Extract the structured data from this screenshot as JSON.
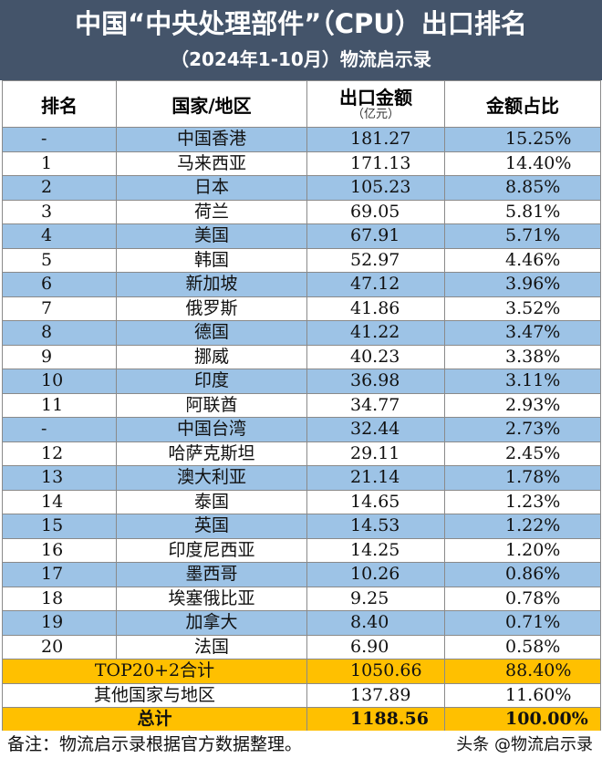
{
  "header": {
    "title": "中国“中央处理部件”（CPU）出口排名",
    "subtitle": "（2024年1-10月）物流启示录"
  },
  "colors": {
    "title_bg": "#44546a",
    "row_blue": "#9dc3e6",
    "summary": "#ffc000"
  },
  "chart_data": {
    "type": "table",
    "columns": [
      "排名",
      "国家/地区",
      "出口金额",
      "金额占比"
    ],
    "amount_unit": "（亿元）",
    "rows": [
      {
        "rank": "-",
        "region": "中国香港",
        "amount": "181.27",
        "share": "15.25%"
      },
      {
        "rank": "1",
        "region": "马来西亚",
        "amount": "171.13",
        "share": "14.40%"
      },
      {
        "rank": "2",
        "region": "日本",
        "amount": "105.23",
        "share": "8.85%"
      },
      {
        "rank": "3",
        "region": "荷兰",
        "amount": "69.05",
        "share": "5.81%"
      },
      {
        "rank": "4",
        "region": "美国",
        "amount": "67.91",
        "share": "5.71%"
      },
      {
        "rank": "5",
        "region": "韩国",
        "amount": "52.97",
        "share": "4.46%"
      },
      {
        "rank": "6",
        "region": "新加坡",
        "amount": "47.12",
        "share": "3.96%"
      },
      {
        "rank": "7",
        "region": "俄罗斯",
        "amount": "41.86",
        "share": "3.52%"
      },
      {
        "rank": "8",
        "region": "德国",
        "amount": "41.22",
        "share": "3.47%"
      },
      {
        "rank": "9",
        "region": "挪威",
        "amount": "40.23",
        "share": "3.38%"
      },
      {
        "rank": "10",
        "region": "印度",
        "amount": "36.98",
        "share": "3.11%"
      },
      {
        "rank": "11",
        "region": "阿联酋",
        "amount": "34.77",
        "share": "2.93%"
      },
      {
        "rank": "-",
        "region": "中国台湾",
        "amount": "32.44",
        "share": "2.73%"
      },
      {
        "rank": "12",
        "region": "哈萨克斯坦",
        "amount": "29.11",
        "share": "2.45%"
      },
      {
        "rank": "13",
        "region": "澳大利亚",
        "amount": "21.14",
        "share": "1.78%"
      },
      {
        "rank": "14",
        "region": "泰国",
        "amount": "14.65",
        "share": "1.23%"
      },
      {
        "rank": "15",
        "region": "英国",
        "amount": "14.53",
        "share": "1.22%"
      },
      {
        "rank": "16",
        "region": "印度尼西亚",
        "amount": "14.25",
        "share": "1.20%"
      },
      {
        "rank": "17",
        "region": "墨西哥",
        "amount": "10.26",
        "share": "0.86%"
      },
      {
        "rank": "18",
        "region": "埃塞俄比亚",
        "amount": "9.25",
        "share": "0.78%"
      },
      {
        "rank": "19",
        "region": "加拿大",
        "amount": "8.40",
        "share": "0.71%"
      },
      {
        "rank": "20",
        "region": "法国",
        "amount": "6.90",
        "share": "0.58%"
      }
    ],
    "summary": [
      {
        "label": "TOP20+2合计",
        "amount": "1050.66",
        "share": "88.40%",
        "highlight": true
      },
      {
        "label": "其他国家与地区",
        "amount": "137.89",
        "share": "11.60%",
        "highlight": false
      },
      {
        "label": "总计",
        "amount": "1188.56",
        "share": "100.00%",
        "highlight": true
      }
    ]
  },
  "footer": {
    "note": "备注：物流启示录根据官方数据整理。",
    "brand": "头条 @物流启示录"
  }
}
